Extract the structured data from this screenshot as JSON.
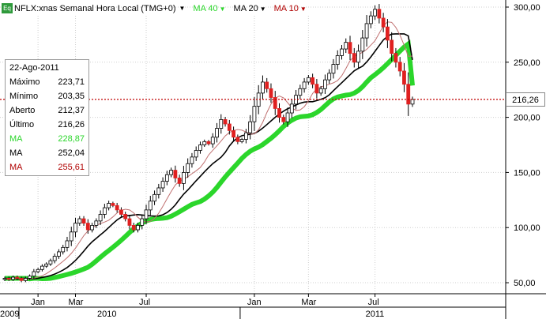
{
  "header": {
    "icon_label": "Eq",
    "title": "NFLX:xnas Semanal Hora Local (TMG+0)",
    "items": [
      {
        "label": "MA 40",
        "color": "#2bd62b"
      },
      {
        "label": "MA 20",
        "color": "#000000"
      },
      {
        "label": "MA 10",
        "color": "#b00000"
      }
    ]
  },
  "info_box": {
    "date": "22-Ago-2011",
    "rows": [
      {
        "label": "Máximo",
        "value": "223,71",
        "color": "#000000"
      },
      {
        "label": "Mínimo",
        "value": "203,35",
        "color": "#000000"
      },
      {
        "label": "Aberto",
        "value": "212,37",
        "color": "#000000"
      },
      {
        "label": "Último",
        "value": "216,26",
        "color": "#000000"
      },
      {
        "label": "MA",
        "value": "228,87",
        "color": "#2bd62b"
      },
      {
        "label": "MA",
        "value": "252,04",
        "color": "#000000"
      },
      {
        "label": "MA",
        "value": "255,61",
        "color": "#b00000"
      }
    ]
  },
  "price_tag": {
    "value": "216,26"
  },
  "chart_data": {
    "type": "candlestick",
    "title": "NFLX:xnas Semanal Hora Local (TMG+0)",
    "ylim": [
      40,
      305
    ],
    "y_ticks": [
      {
        "value": 50,
        "label": "50,00"
      },
      {
        "value": 100,
        "label": "100,00"
      },
      {
        "value": 150,
        "label": "150,00"
      },
      {
        "value": 200,
        "label": "200,00"
      },
      {
        "value": 250,
        "label": "250,00"
      },
      {
        "value": 300,
        "label": "300,00"
      }
    ],
    "x_month_labels": [
      {
        "month": "2010-01",
        "label": "Jan"
      },
      {
        "month": "2010-03",
        "label": "Mar"
      },
      {
        "month": "2010-07",
        "label": "Jul"
      },
      {
        "month": "2011-01",
        "label": "Jan"
      },
      {
        "month": "2011-03",
        "label": "Mar"
      },
      {
        "month": "2011-07",
        "label": "Jul"
      }
    ],
    "x_year_labels": [
      {
        "label": "2009",
        "position": "start"
      },
      {
        "label": "2010",
        "position": "2010"
      },
      {
        "label": "2011",
        "position": "2011"
      }
    ],
    "last_price": 216.26,
    "colors": {
      "up": "#ffffff",
      "down": "#e02020",
      "ma40": "#2bd62b",
      "ma20": "#000000",
      "ma10": "#c07070",
      "last_line": "#c00000"
    },
    "candles_close": [
      54,
      53,
      55,
      54,
      52,
      54,
      56,
      60,
      62,
      65,
      67,
      70,
      74,
      78,
      82,
      88,
      96,
      104,
      108,
      104,
      98,
      102,
      106,
      112,
      118,
      122,
      120,
      116,
      112,
      108,
      102,
      98,
      102,
      108,
      116,
      124,
      130,
      136,
      142,
      148,
      152,
      145,
      140,
      150,
      158,
      164,
      170,
      175,
      178,
      176,
      182,
      190,
      198,
      194,
      188,
      182,
      178,
      180,
      186,
      196,
      210,
      222,
      232,
      226,
      218,
      208,
      200,
      196,
      204,
      212,
      220,
      226,
      232,
      236,
      230,
      222,
      226,
      234,
      240,
      248,
      256,
      262,
      268,
      258,
      250,
      260,
      272,
      285,
      292,
      298,
      290,
      282,
      270,
      258,
      250,
      242,
      230,
      212,
      216.26
    ],
    "ma40_end": 228.87,
    "ma20_end": 252.04,
    "ma10_end": 255.61
  }
}
